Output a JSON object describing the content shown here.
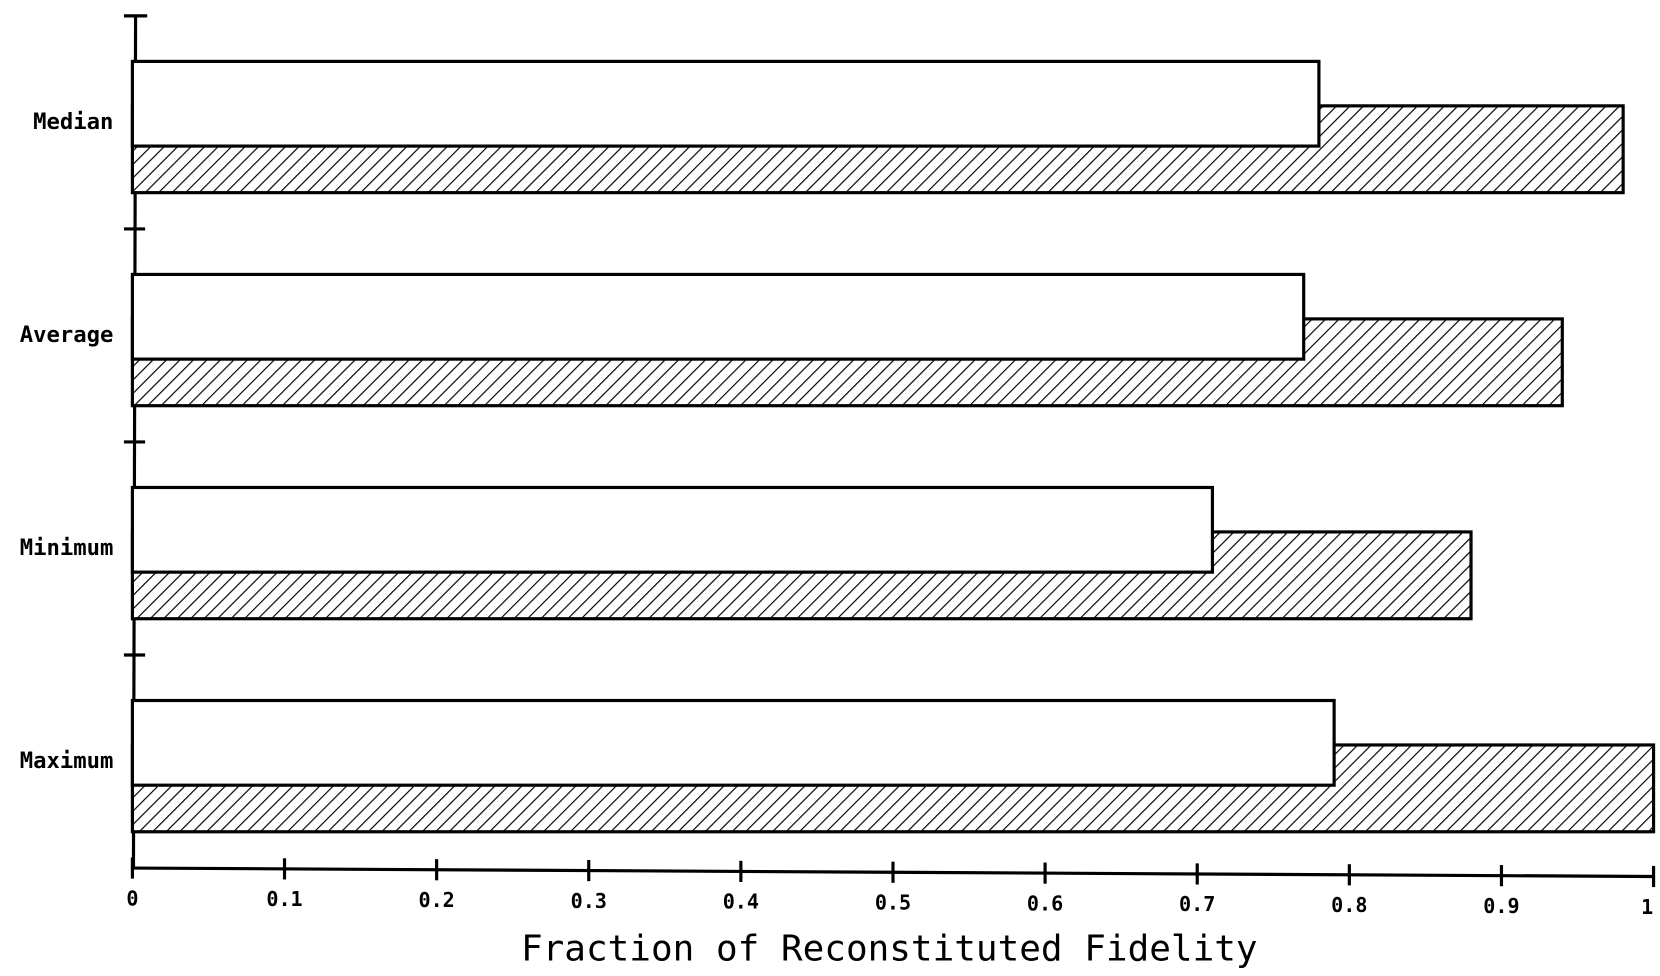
{
  "chart_data": {
    "type": "barh",
    "xlabel": "Fraction of Reconstituted Fidelity",
    "categories": [
      "Median",
      "Average",
      "Minimum",
      "Maximum"
    ],
    "series": [
      {
        "color": "#ffffff",
        "hatch": false,
        "values": [
          0.78,
          0.77,
          0.71,
          0.79
        ]
      },
      {
        "color": "#000000",
        "hatch": true,
        "values": [
          0.98,
          0.94,
          0.88,
          1.0
        ]
      }
    ],
    "xlim": [
      0,
      1
    ],
    "xticks": [
      0,
      0.1,
      0.2,
      0.3,
      0.4,
      0.5,
      0.6,
      0.7,
      0.8,
      0.9,
      1
    ],
    "grid": false
  }
}
